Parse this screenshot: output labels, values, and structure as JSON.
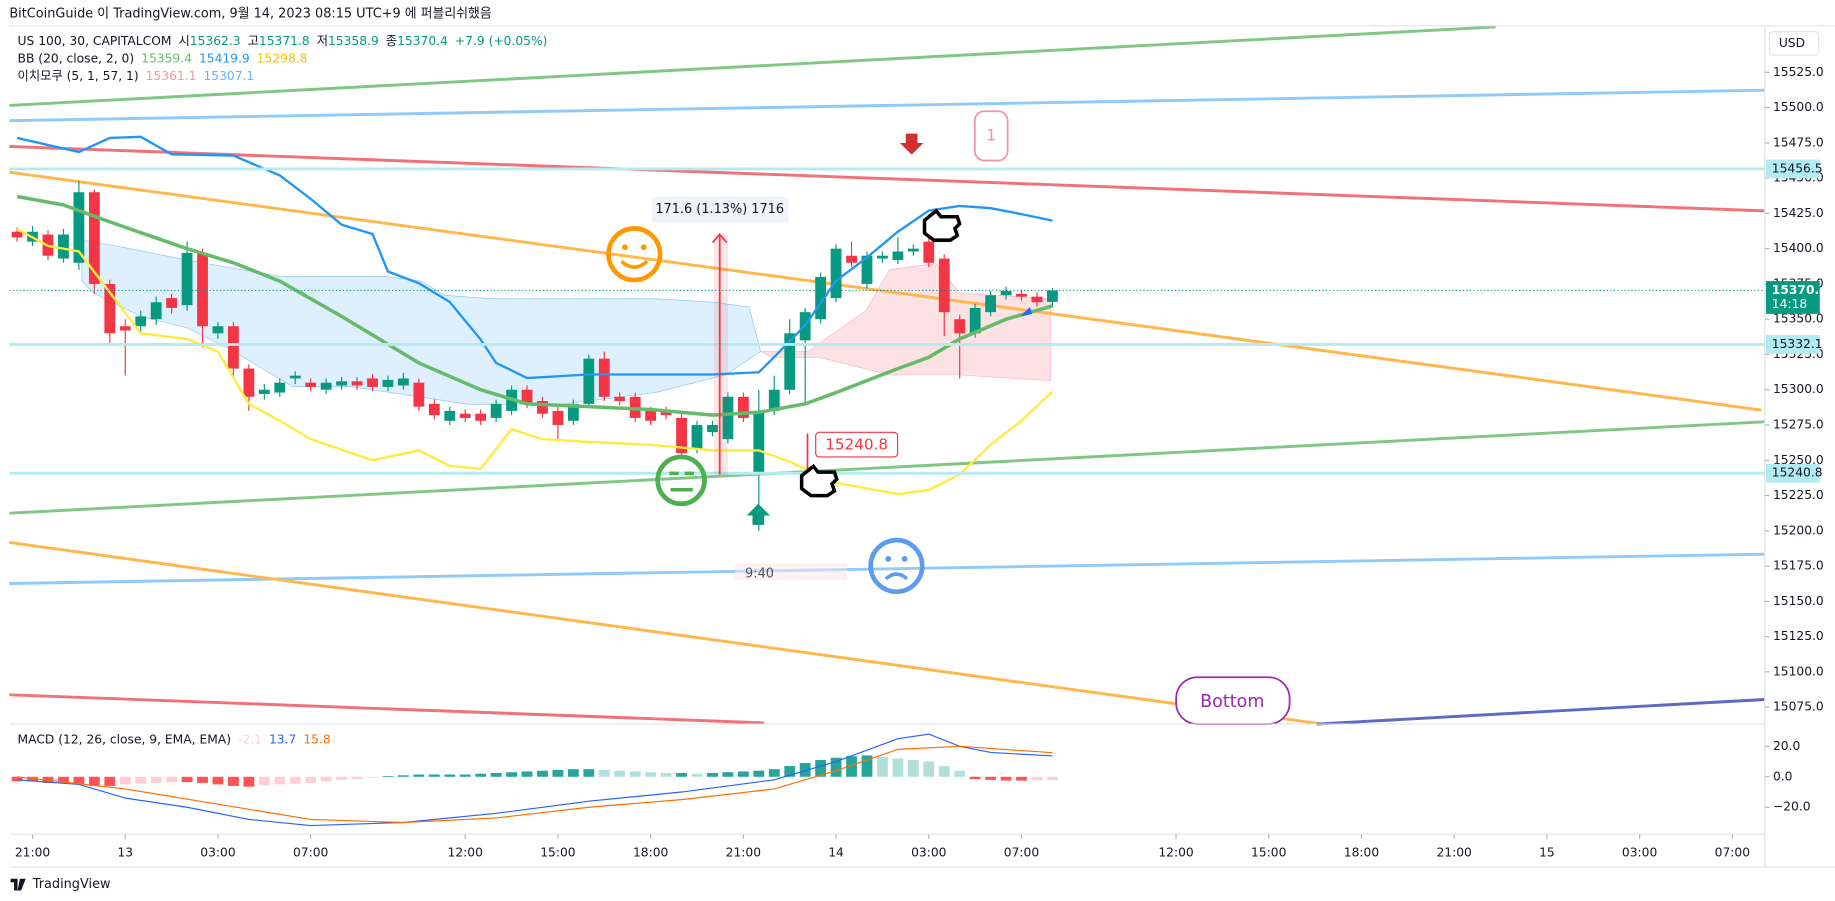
{
  "chart_data": {
    "type": "candlestick",
    "header": {
      "publisher": "BitCoinGuide 이 TradingView.com, 9월 14, 2023 08:15 UTC+9 에 퍼블리쉬했음",
      "symbol": "US 100, 30, CAPITALCOM",
      "open_label": "시",
      "high_label": "고",
      "low_label": "저",
      "close_label": "종",
      "change": "+7.9 (+0.05%)",
      "bb_label": "BB (20, close, 2, 0)",
      "ichimoku_label": "이치모쿠 (5, 1, 57, 1)",
      "ichimoku_values": [
        15361.1,
        15307.1
      ],
      "currency": "USD"
    },
    "up_color": "#089981",
    "down_color": "#f23645",
    "x": [
      -1,
      0,
      1,
      2,
      3,
      4,
      5,
      6,
      7,
      8,
      9,
      10,
      11,
      12,
      13,
      14,
      15,
      16,
      17,
      18,
      19,
      20,
      21,
      22,
      23,
      24,
      25,
      26,
      27,
      28,
      29,
      30,
      31,
      32,
      33,
      34,
      35,
      36,
      37,
      38,
      39,
      40,
      41,
      42,
      43,
      44,
      45,
      46,
      47,
      48,
      49,
      50,
      51,
      52,
      53,
      54,
      55,
      56,
      57,
      58,
      59,
      60,
      61,
      62,
      63,
      64,
      65,
      66
    ],
    "open": [
      15412,
      15405,
      15410,
      15393,
      15390,
      15440,
      15375,
      15345,
      15345,
      15350,
      15365,
      15360,
      15397,
      15340,
      15345,
      15315,
      15297,
      15298,
      15308,
      15305,
      15300,
      15303,
      15306,
      15308,
      15302,
      15303,
      15305,
      15290,
      15278,
      15283,
      15283,
      15280,
      15285,
      15300,
      15292,
      15285,
      15278,
      15290,
      15322,
      15295,
      15295,
      15285,
      15285,
      15280,
      15258,
      15270,
      15265,
      15295,
      15240,
      15285,
      15300,
      15335,
      15350,
      15365,
      15395,
      15375,
      15393,
      15392,
      15398,
      15405,
      15393,
      15350,
      15340,
      15355,
      15367,
      15368,
      15366,
      15362.3
    ],
    "high": [
      15415,
      15416,
      15413,
      15414,
      15448,
      15442,
      15378,
      15350,
      15356,
      15366,
      15368,
      15405,
      15400,
      15348,
      15348,
      15318,
      15304,
      15308,
      15313,
      15308,
      15308,
      15309,
      15309,
      15311,
      15310,
      15312,
      15308,
      15293,
      15288,
      15286,
      15286,
      15293,
      15303,
      15303,
      15295,
      15288,
      15293,
      15325,
      15327,
      15298,
      15298,
      15288,
      15288,
      15283,
      15278,
      15278,
      15298,
      15298,
      15300,
      15310,
      15350,
      15358,
      15383,
      15403,
      15405,
      15398,
      15398,
      15408,
      15403,
      15418,
      15396,
      15353,
      15361,
      15370,
      15373,
      15371,
      15369,
      15371.8
    ],
    "low": [
      15405,
      15402,
      15392,
      15390,
      15385,
      15368,
      15333,
      15310,
      15340,
      15346,
      15354,
      15356,
      15330,
      15336,
      15310,
      15285,
      15293,
      15295,
      15304,
      15299,
      15297,
      15300,
      15300,
      15299,
      15299,
      15300,
      15285,
      15279,
      15275,
      15277,
      15275,
      15277,
      15282,
      15287,
      15280,
      15265,
      15275,
      15287,
      15292,
      15289,
      15277,
      15275,
      15279,
      15252,
      15255,
      15267,
      15262,
      15277,
      15200,
      15282,
      15297,
      15290,
      15347,
      15362,
      15387,
      15372,
      15390,
      15389,
      15395,
      15387,
      15338,
      15308,
      15337,
      15352,
      15364,
      15363,
      15359,
      15358.9
    ],
    "close": [
      15408,
      15412,
      15395,
      15410,
      15440,
      15375,
      15340,
      15342,
      15352,
      15362,
      15358,
      15397,
      15345,
      15345,
      15315,
      15295,
      15300,
      15305,
      15310,
      15302,
      15305,
      15306,
      15303,
      15302,
      15307,
      15308,
      15288,
      15282,
      15285,
      15280,
      15278,
      15290,
      15300,
      15290,
      15283,
      15275,
      15290,
      15322,
      15295,
      15292,
      15280,
      15278,
      15282,
      15255,
      15275,
      15275,
      15295,
      15280,
      15285,
      15300,
      15340,
      15355,
      15380,
      15400,
      15390,
      15395,
      15395,
      15398,
      15400,
      15390,
      15355,
      15340,
      15358,
      15367,
      15370,
      15366,
      15362,
      15370.4
    ],
    "series": [
      {
        "color": "#2196f3",
        "x": [
          -1,
          3,
          5,
          7,
          9,
          13,
          16,
          18,
          20,
          22,
          23,
          25,
          27,
          29,
          30,
          32,
          36,
          40,
          44,
          47,
          48,
          50,
          52,
          54,
          56,
          58,
          60,
          62,
          64,
          66
        ],
        "values": [
          15478.5,
          15468.5,
          15478.5,
          15479.3,
          15466.9,
          15466,
          15451.9,
          15435.3,
          15417,
          15410.4,
          15383.8,
          15375.5,
          15362.2,
          15335.6,
          15319,
          15308.3,
          15310.8,
          15310.8,
          15310.8,
          15312.4,
          15323.2,
          15345.7,
          15377.2,
          15393.8,
          15412,
          15427,
          15430.3,
          15428.7,
          15424.5,
          15419.9
        ]
      },
      {
        "color": "#66bb6a",
        "x": [
          -1,
          2,
          5,
          10,
          13,
          16,
          20,
          25,
          29,
          32,
          36,
          40,
          44,
          47,
          50,
          52,
          56,
          58,
          60,
          63,
          66
        ],
        "values": [
          15437,
          15431,
          15419,
          15400,
          15390,
          15377,
          15352,
          15319,
          15300,
          15290,
          15288,
          15286,
          15282,
          15284,
          15290,
          15298,
          15315,
          15323,
          15336,
          15350,
          15359.4
        ]
      },
      {
        "color": "#ffeb3b",
        "x": [
          -1,
          1,
          3,
          5,
          7,
          10,
          12,
          14,
          16,
          18,
          22,
          25,
          27,
          29,
          31,
          33,
          36,
          40,
          44,
          47,
          49,
          52,
          56,
          58,
          60,
          62,
          64,
          66
        ],
        "values": [
          15414,
          15402,
          15398,
          15369,
          15340,
          15336,
          15327,
          15290,
          15278,
          15265,
          15250,
          15257,
          15246,
          15244,
          15272,
          15265,
          15263,
          15261,
          15257,
          15257,
          15249,
          15234,
          15226,
          15229,
          15240,
          15261,
          15278,
          15298.8
        ]
      }
    ],
    "xlim": [
      -1.5,
      112.1
    ],
    "xticks": [
      {
        "value": 0,
        "label": "21:00"
      },
      {
        "value": 6,
        "label": "13"
      },
      {
        "value": 12,
        "label": "03:00"
      },
      {
        "value": 18,
        "label": "07:00"
      },
      {
        "value": 28,
        "label": "12:00"
      },
      {
        "value": 34,
        "label": "15:00"
      },
      {
        "value": 40,
        "label": "18:00"
      },
      {
        "value": 46,
        "label": "21:00"
      },
      {
        "value": 52,
        "label": "14"
      },
      {
        "value": 58,
        "label": "03:00"
      },
      {
        "value": 64,
        "label": "07:00"
      },
      {
        "value": 74,
        "label": "12:00"
      },
      {
        "value": 80,
        "label": "15:00"
      },
      {
        "value": 86,
        "label": "18:00"
      },
      {
        "value": 92,
        "label": "21:00"
      },
      {
        "value": 98,
        "label": "15"
      },
      {
        "value": 104,
        "label": "03:00"
      },
      {
        "value": 110,
        "label": "07:00"
      }
    ],
    "ylim": [
      15063,
      15558
    ],
    "yticks": [
      {
        "value": 15525,
        "label": "15525.0"
      },
      {
        "value": 15500,
        "label": "15500.0"
      },
      {
        "value": 15475,
        "label": "15475.0"
      },
      {
        "value": 15450,
        "label": "15450.0"
      },
      {
        "value": 15425,
        "label": "15425.0"
      },
      {
        "value": 15400,
        "label": "15400.0"
      },
      {
        "value": 15375,
        "label": "15375.0"
      },
      {
        "value": 15350,
        "label": "15350.0"
      },
      {
        "value": 15325,
        "label": "15325.0"
      },
      {
        "value": 15300,
        "label": "15300.0"
      },
      {
        "value": 15275,
        "label": "15275.0"
      },
      {
        "value": 15250,
        "label": "15250.0"
      },
      {
        "value": 15225,
        "label": "15225.0"
      },
      {
        "value": 15200,
        "label": "15200.0"
      },
      {
        "value": 15175,
        "label": "15175.0"
      },
      {
        "value": 15150,
        "label": "15150.0"
      },
      {
        "value": 15125,
        "label": "15125.0"
      },
      {
        "value": 15100,
        "label": "15100.0"
      },
      {
        "value": 15075,
        "label": "15075.0"
      }
    ],
    "levels": [
      15456.5,
      15332.1,
      15240.8
    ],
    "last_price": 15370.4,
    "countdown": "14:18",
    "annotations": {
      "measure": "171.6 (1.13%) 1716",
      "low_price": "15240.8",
      "time": "9:40",
      "wave": "1",
      "bottom": "Bottom"
    },
    "macd": {
      "label": "MACD (12, 26, close, 9, EMA, EMA)",
      "ylim": [
        -37.7,
        34.6
      ],
      "yticks": [
        {
          "value": 20,
          "label": "20.0"
        },
        {
          "value": 0,
          "label": "0.0"
        },
        {
          "value": -20,
          "label": "−20.0"
        }
      ],
      "hist": [
        -3,
        -3,
        -4,
        -4,
        -5,
        -6,
        -6,
        -5,
        -4.5,
        -4,
        -3.5,
        -3.5,
        -4,
        -5,
        -6,
        -6.5,
        -5.5,
        -5,
        -4.5,
        -4,
        -3,
        -2,
        -1.5,
        -0.5,
        0.5,
        1,
        1.5,
        1.5,
        1.5,
        1.5,
        2,
        2.5,
        3,
        3.5,
        4,
        4.5,
        5,
        5,
        4.5,
        4,
        3.5,
        3,
        2.5,
        2.5,
        2,
        2.5,
        3,
        3.5,
        4,
        5,
        7,
        9,
        11,
        12.5,
        13.5,
        14,
        13,
        12,
        11,
        10,
        7,
        4,
        -1.5,
        -2,
        -2.5,
        -2.5,
        -2.3,
        -2.1
      ],
      "line_x": [
        -1,
        3,
        6,
        10,
        14,
        18,
        24,
        30,
        36,
        42,
        48,
        52,
        56,
        58,
        60,
        62,
        66
      ],
      "line": [
        -2,
        -5,
        -14,
        -20,
        -28,
        -32,
        -30,
        -24,
        -16,
        -10,
        -2,
        10,
        25,
        28,
        20,
        16,
        13.7
      ],
      "signal_x": [
        -1,
        6,
        12,
        18,
        24,
        30,
        36,
        42,
        48,
        52,
        56,
        60,
        66
      ],
      "signal": [
        0,
        -8,
        -18,
        -28,
        -30,
        -27,
        -20,
        -15,
        -8,
        4,
        18,
        20,
        15.8
      ]
    },
    "footer": "TradingView"
  }
}
